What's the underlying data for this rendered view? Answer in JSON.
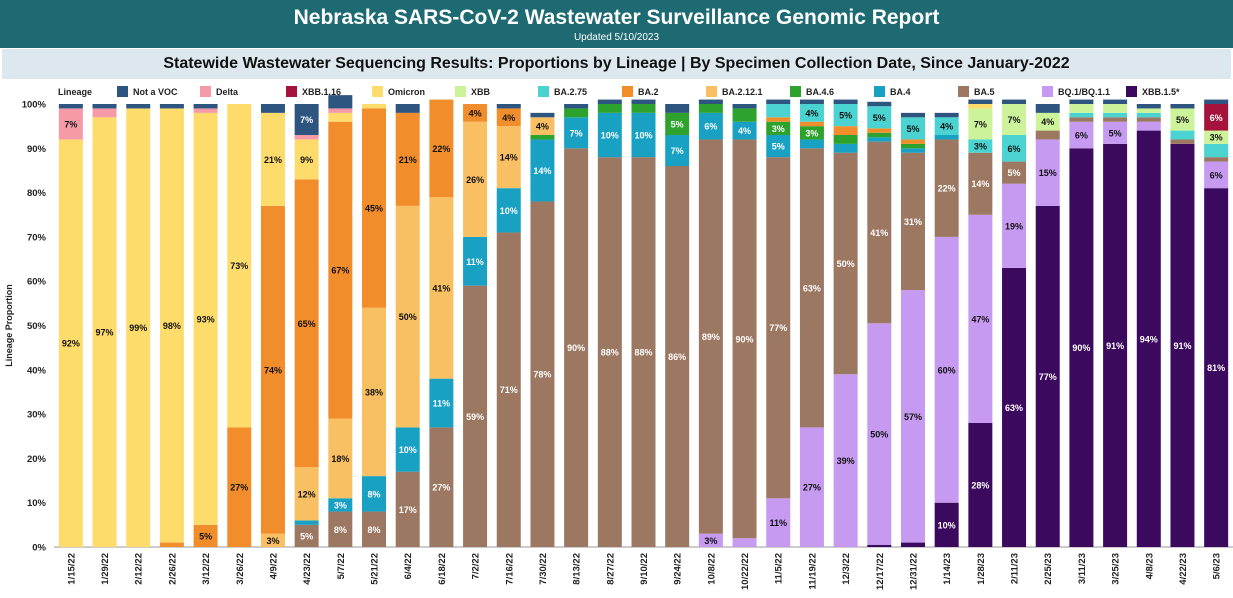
{
  "header": {
    "title": "Nebraska SARS-CoV-2 Wastewater Surveillance Genomic Report",
    "updated": "Updated 5/10/2023"
  },
  "subtitle": "Statewide Wastewater Sequencing Results: Proportions by Lineage | By Specimen Collection Date, Since January-2022",
  "legend_title": "Lineage",
  "colors": {
    "Not a VOC": "#2e5580",
    "Delta": "#f69aa8",
    "XBB.1.16": "#a5133d",
    "Omicron": "#fddc6b",
    "XBB": "#ccf39a",
    "BA.2.75": "#4ad3d0",
    "BA.2": "#f28d2b",
    "BA.2.12.1": "#f8bf63",
    "BA.4.6": "#2da32d",
    "BA.4": "#19a1c4",
    "BA.5": "#9c7862",
    "BQ.1/BQ.1.1": "#c69af0",
    "XBB.1.5*": "#3b0a5e"
  },
  "chart_data": {
    "type": "bar",
    "stacked": true,
    "title": "Statewide Wastewater Sequencing Results: Proportions by Lineage | By Specimen Collection Date, Since January-2022",
    "ylabel": "Lineage Proportion",
    "xlabel": "",
    "ylim": [
      0,
      100
    ],
    "yticks": [
      "0%",
      "10%",
      "20%",
      "30%",
      "40%",
      "50%",
      "60%",
      "70%",
      "80%",
      "90%",
      "100%"
    ],
    "legend_placement": "top",
    "grid": false,
    "stack_order": [
      "XBB.1.5*",
      "BQ.1/BQ.1.1",
      "BA.5",
      "BA.4",
      "BA.4.6",
      "BA.2.12.1",
      "BA.2",
      "BA.2.75",
      "XBB",
      "Omicron",
      "XBB.1.16",
      "Delta",
      "Not a VOC"
    ],
    "legend_order": [
      "Not a VOC",
      "Delta",
      "XBB.1.16",
      "Omicron",
      "XBB",
      "BA.2.75",
      "BA.2",
      "BA.2.12.1",
      "BA.4.6",
      "BA.4",
      "BA.5",
      "BQ.1/BQ.1.1",
      "XBB.1.5*"
    ],
    "categories": [
      "1/15/22",
      "1/29/22",
      "2/12/22",
      "2/26/22",
      "3/12/22",
      "3/26/22",
      "4/9/22",
      "4/23/22",
      "5/7/22",
      "5/21/22",
      "6/4/22",
      "6/18/22",
      "7/2/22",
      "7/16/22",
      "7/30/22",
      "8/13/22",
      "8/27/22",
      "9/10/22",
      "9/24/22",
      "10/8/22",
      "10/22/22",
      "11/5/22",
      "11/19/22",
      "12/3/22",
      "12/17/22",
      "12/31/22",
      "1/14/23",
      "1/28/23",
      "2/11/23",
      "2/25/23",
      "3/11/23",
      "3/25/23",
      "4/8/23",
      "4/22/23",
      "5/6/23"
    ],
    "series": [
      {
        "name": "XBB.1.5*",
        "values": [
          0,
          0,
          0,
          0,
          0,
          0,
          0,
          0,
          0,
          0,
          0,
          0,
          0,
          0,
          0,
          0,
          0,
          0,
          0,
          0,
          0,
          0,
          0,
          0,
          0.5,
          1,
          10,
          28,
          63,
          77,
          90,
          91,
          94,
          91,
          81
        ]
      },
      {
        "name": "BQ.1/BQ.1.1",
        "values": [
          0,
          0,
          0,
          0,
          0,
          0,
          0,
          0,
          0,
          0,
          0,
          0,
          0,
          0,
          0,
          0,
          0,
          0,
          0,
          3,
          2,
          11,
          27,
          39,
          50,
          57,
          60,
          47,
          19,
          15,
          6,
          5,
          2,
          0,
          6
        ]
      },
      {
        "name": "BA.5",
        "values": [
          0,
          0,
          0,
          0,
          0,
          0,
          0,
          5,
          8,
          8,
          17,
          27,
          59,
          71,
          78,
          90,
          88,
          88,
          86,
          89,
          90,
          77,
          63,
          50,
          41,
          31,
          22,
          14,
          5,
          2,
          1,
          1,
          1,
          1,
          1
        ]
      },
      {
        "name": "BA.4",
        "values": [
          0,
          0,
          0,
          0,
          0,
          0,
          0,
          1,
          3,
          8,
          10,
          11,
          11,
          10,
          14,
          7,
          10,
          10,
          7,
          6,
          4,
          5,
          2,
          2,
          1,
          1,
          1,
          0,
          0,
          0,
          0,
          0,
          0,
          0,
          0
        ]
      },
      {
        "name": "BA.4.6",
        "values": [
          0,
          0,
          0,
          0,
          0,
          0,
          0,
          0,
          0,
          0,
          0,
          0,
          0,
          0,
          1,
          2,
          2,
          2,
          5,
          2,
          3,
          3,
          3,
          2,
          1,
          1,
          0,
          0,
          0,
          0,
          0,
          0,
          0,
          0,
          0
        ]
      },
      {
        "name": "BA.2.12.1",
        "values": [
          0,
          0,
          0,
          0,
          0,
          0,
          3,
          12,
          18,
          38,
          50,
          41,
          26,
          14,
          4,
          0,
          0,
          0,
          0,
          0,
          0,
          0,
          0,
          0,
          0,
          0,
          0,
          0,
          0,
          0,
          0,
          0,
          0,
          0,
          0
        ]
      },
      {
        "name": "BA.2",
        "values": [
          0,
          0,
          0,
          1,
          5,
          27,
          74,
          65,
          67,
          45,
          21,
          22,
          4,
          4,
          0,
          0,
          0,
          0,
          0,
          0,
          0,
          1,
          1,
          2,
          1,
          1,
          0,
          0,
          0,
          0,
          0,
          0,
          0,
          0,
          0
        ]
      },
      {
        "name": "BA.2.75",
        "values": [
          0,
          0,
          0,
          0,
          0,
          0,
          0,
          0,
          0,
          0,
          0,
          0,
          0,
          0,
          0,
          0,
          0,
          0,
          0,
          0,
          0,
          3,
          4,
          5,
          5,
          5,
          4,
          3,
          6,
          0,
          1,
          1,
          1,
          2,
          3
        ]
      },
      {
        "name": "XBB",
        "values": [
          0,
          0,
          0,
          0,
          0,
          0,
          0,
          0,
          0,
          0,
          0,
          0,
          0,
          0,
          0,
          0,
          0,
          0,
          0,
          0,
          0,
          0,
          0,
          0,
          0,
          0,
          0,
          7,
          7,
          4,
          2,
          2,
          1,
          5,
          3
        ]
      },
      {
        "name": "Omicron",
        "values": [
          92,
          97,
          99,
          98,
          93,
          73,
          21,
          9,
          2,
          1,
          0,
          0,
          0,
          0,
          0,
          0,
          0,
          0,
          0,
          0,
          0,
          0,
          0,
          0,
          0,
          0,
          0,
          1,
          0,
          0,
          0,
          0,
          0,
          0,
          0
        ]
      },
      {
        "name": "XBB.1.16",
        "values": [
          0,
          0,
          0,
          0,
          0,
          0,
          0,
          0,
          0,
          0,
          0,
          0,
          0,
          0,
          0,
          0,
          0,
          0,
          0,
          0,
          0,
          0,
          0,
          0,
          0,
          0,
          0,
          0,
          0,
          0,
          0,
          0,
          0,
          0,
          6
        ]
      },
      {
        "name": "Delta",
        "values": [
          7,
          2,
          0,
          0,
          1,
          0,
          0,
          1,
          1,
          0,
          0,
          0,
          0,
          0,
          0,
          0,
          0,
          0,
          0,
          0,
          0,
          0,
          0,
          0,
          0,
          0,
          0,
          0,
          0,
          0,
          0,
          0,
          0,
          0,
          0
        ]
      },
      {
        "name": "Not a VOC",
        "values": [
          1,
          1,
          1,
          1,
          1,
          0,
          2,
          7,
          3,
          0,
          2,
          0,
          0,
          1,
          1,
          1,
          1,
          1,
          2,
          1,
          1,
          1,
          1,
          1,
          1,
          1,
          1,
          1,
          1,
          2,
          1,
          1,
          1,
          1,
          1
        ]
      }
    ],
    "labels": [
      {
        "x": "1/15/22",
        "series": "Omicron",
        "text": "92%"
      },
      {
        "x": "1/15/22",
        "series": "Delta",
        "text": "7%"
      },
      {
        "x": "1/29/22",
        "series": "Omicron",
        "text": "97%"
      },
      {
        "x": "2/12/22",
        "series": "Omicron",
        "text": "99%"
      },
      {
        "x": "2/26/22",
        "series": "Omicron",
        "text": "98%"
      },
      {
        "x": "3/12/22",
        "series": "Omicron",
        "text": "93%"
      },
      {
        "x": "3/12/22",
        "series": "BA.2",
        "text": "5%"
      },
      {
        "x": "3/26/22",
        "series": "Omicron",
        "text": "73%"
      },
      {
        "x": "3/26/22",
        "series": "BA.2",
        "text": "27%"
      },
      {
        "x": "4/9/22",
        "series": "BA.2",
        "text": "74%"
      },
      {
        "x": "4/9/22",
        "series": "Omicron",
        "text": "21%"
      },
      {
        "x": "4/9/22",
        "series": "BA.2.12.1",
        "text": "3%"
      },
      {
        "x": "4/23/22",
        "series": "BA.2",
        "text": "65%"
      },
      {
        "x": "4/23/22",
        "series": "BA.2.12.1",
        "text": "12%"
      },
      {
        "x": "4/23/22",
        "series": "Omicron",
        "text": "9%"
      },
      {
        "x": "4/23/22",
        "series": "Not a VOC",
        "text": "7%"
      },
      {
        "x": "4/23/22",
        "series": "BA.5",
        "text": "5%"
      },
      {
        "x": "5/7/22",
        "series": "BA.2",
        "text": "67%"
      },
      {
        "x": "5/7/22",
        "series": "BA.2.12.1",
        "text": "18%"
      },
      {
        "x": "5/7/22",
        "series": "BA.5",
        "text": "8%"
      },
      {
        "x": "5/7/22",
        "series": "BA.4",
        "text": "3%"
      },
      {
        "x": "5/21/22",
        "series": "BA.2",
        "text": "45%"
      },
      {
        "x": "5/21/22",
        "series": "BA.2.12.1",
        "text": "38%"
      },
      {
        "x": "5/21/22",
        "series": "BA.4",
        "text": "8%"
      },
      {
        "x": "5/21/22",
        "series": "BA.5",
        "text": "8%"
      },
      {
        "x": "6/4/22",
        "series": "BA.2.12.1",
        "text": "50%"
      },
      {
        "x": "6/4/22",
        "series": "BA.2",
        "text": "21%"
      },
      {
        "x": "6/4/22",
        "series": "BA.5",
        "text": "17%"
      },
      {
        "x": "6/4/22",
        "series": "BA.4",
        "text": "10%"
      },
      {
        "x": "6/18/22",
        "series": "BA.2.12.1",
        "text": "41%"
      },
      {
        "x": "6/18/22",
        "series": "BA.5",
        "text": "27%"
      },
      {
        "x": "6/18/22",
        "series": "BA.2",
        "text": "22%"
      },
      {
        "x": "6/18/22",
        "series": "BA.4",
        "text": "11%"
      },
      {
        "x": "7/2/22",
        "series": "BA.5",
        "text": "59%"
      },
      {
        "x": "7/2/22",
        "series": "BA.2.12.1",
        "text": "26%"
      },
      {
        "x": "7/2/22",
        "series": "BA.4",
        "text": "11%"
      },
      {
        "x": "7/2/22",
        "series": "BA.2",
        "text": "4%"
      },
      {
        "x": "7/16/22",
        "series": "BA.5",
        "text": "71%"
      },
      {
        "x": "7/16/22",
        "series": "BA.2.12.1",
        "text": "14%"
      },
      {
        "x": "7/16/22",
        "series": "BA.4",
        "text": "10%"
      },
      {
        "x": "7/16/22",
        "series": "BA.2",
        "text": "4%"
      },
      {
        "x": "7/30/22",
        "series": "BA.5",
        "text": "78%"
      },
      {
        "x": "7/30/22",
        "series": "BA.4",
        "text": "14%"
      },
      {
        "x": "7/30/22",
        "series": "BA.2.12.1",
        "text": "4%"
      },
      {
        "x": "8/13/22",
        "series": "BA.5",
        "text": "90%"
      },
      {
        "x": "8/13/22",
        "series": "BA.4",
        "text": "7%"
      },
      {
        "x": "8/27/22",
        "series": "BA.5",
        "text": "88%"
      },
      {
        "x": "8/27/22",
        "series": "BA.4",
        "text": "10%"
      },
      {
        "x": "9/10/22",
        "series": "BA.5",
        "text": "88%"
      },
      {
        "x": "9/10/22",
        "series": "BA.4",
        "text": "10%"
      },
      {
        "x": "9/24/22",
        "series": "BA.5",
        "text": "86%"
      },
      {
        "x": "9/24/22",
        "series": "BA.4",
        "text": "7%"
      },
      {
        "x": "9/24/22",
        "series": "BA.4.6",
        "text": "5%"
      },
      {
        "x": "10/8/22",
        "series": "BA.5",
        "text": "89%"
      },
      {
        "x": "10/8/22",
        "series": "BA.4",
        "text": "6%"
      },
      {
        "x": "10/8/22",
        "series": "BQ.1/BQ.1.1",
        "text": "3%"
      },
      {
        "x": "10/22/22",
        "series": "BA.5",
        "text": "90%"
      },
      {
        "x": "10/22/22",
        "series": "BA.4",
        "text": "4%"
      },
      {
        "x": "11/5/22",
        "series": "BA.5",
        "text": "77%"
      },
      {
        "x": "11/5/22",
        "series": "BQ.1/BQ.1.1",
        "text": "11%"
      },
      {
        "x": "11/5/22",
        "series": "BA.4",
        "text": "5%"
      },
      {
        "x": "11/5/22",
        "series": "BA.4.6",
        "text": "3%"
      },
      {
        "x": "11/19/22",
        "series": "BA.5",
        "text": "63%"
      },
      {
        "x": "11/19/22",
        "series": "BQ.1/BQ.1.1",
        "text": "27%"
      },
      {
        "x": "11/19/22",
        "series": "BA.2.75",
        "text": "4%"
      },
      {
        "x": "11/19/22",
        "series": "BA.4.6",
        "text": "3%"
      },
      {
        "x": "12/3/22",
        "series": "BA.5",
        "text": "50%"
      },
      {
        "x": "12/3/22",
        "series": "BQ.1/BQ.1.1",
        "text": "39%"
      },
      {
        "x": "12/3/22",
        "series": "BA.2.75",
        "text": "5%"
      },
      {
        "x": "12/17/22",
        "series": "BQ.1/BQ.1.1",
        "text": "50%"
      },
      {
        "x": "12/17/22",
        "series": "BA.5",
        "text": "41%"
      },
      {
        "x": "12/17/22",
        "series": "BA.2.75",
        "text": "5%"
      },
      {
        "x": "12/31/22",
        "series": "BQ.1/BQ.1.1",
        "text": "57%"
      },
      {
        "x": "12/31/22",
        "series": "BA.5",
        "text": "31%"
      },
      {
        "x": "12/31/22",
        "series": "BA.2.75",
        "text": "5%"
      },
      {
        "x": "1/14/23",
        "series": "BQ.1/BQ.1.1",
        "text": "60%"
      },
      {
        "x": "1/14/23",
        "series": "BA.5",
        "text": "22%"
      },
      {
        "x": "1/14/23",
        "series": "XBB.1.5*",
        "text": "10%"
      },
      {
        "x": "1/14/23",
        "series": "BA.2.75",
        "text": "4%"
      },
      {
        "x": "1/28/23",
        "series": "BQ.1/BQ.1.1",
        "text": "47%"
      },
      {
        "x": "1/28/23",
        "series": "XBB.1.5*",
        "text": "28%"
      },
      {
        "x": "1/28/23",
        "series": "BA.5",
        "text": "14%"
      },
      {
        "x": "1/28/23",
        "series": "XBB",
        "text": "7%"
      },
      {
        "x": "1/28/23",
        "series": "BA.2.75",
        "text": "3%"
      },
      {
        "x": "2/11/23",
        "series": "XBB.1.5*",
        "text": "63%"
      },
      {
        "x": "2/11/23",
        "series": "BQ.1/BQ.1.1",
        "text": "19%"
      },
      {
        "x": "2/11/23",
        "series": "XBB",
        "text": "7%"
      },
      {
        "x": "2/11/23",
        "series": "BA.2.75",
        "text": "6%"
      },
      {
        "x": "2/11/23",
        "series": "BA.5",
        "text": "5%"
      },
      {
        "x": "2/25/23",
        "series": "XBB.1.5*",
        "text": "77%"
      },
      {
        "x": "2/25/23",
        "series": "BQ.1/BQ.1.1",
        "text": "15%"
      },
      {
        "x": "2/25/23",
        "series": "XBB",
        "text": "4%"
      },
      {
        "x": "3/11/23",
        "series": "XBB.1.5*",
        "text": "90%"
      },
      {
        "x": "3/11/23",
        "series": "BQ.1/BQ.1.1",
        "text": "6%"
      },
      {
        "x": "3/25/23",
        "series": "XBB.1.5*",
        "text": "91%"
      },
      {
        "x": "3/25/23",
        "series": "BQ.1/BQ.1.1",
        "text": "5%"
      },
      {
        "x": "4/8/23",
        "series": "XBB.1.5*",
        "text": "94%"
      },
      {
        "x": "4/22/23",
        "series": "XBB.1.5*",
        "text": "91%"
      },
      {
        "x": "4/22/23",
        "series": "XBB",
        "text": "5%"
      },
      {
        "x": "5/6/23",
        "series": "XBB.1.5*",
        "text": "81%"
      },
      {
        "x": "5/6/23",
        "series": "BQ.1/BQ.1.1",
        "text": "6%"
      },
      {
        "x": "5/6/23",
        "series": "XBB",
        "text": "3%"
      },
      {
        "x": "5/6/23",
        "series": "XBB.1.16",
        "text": "6%"
      }
    ]
  }
}
